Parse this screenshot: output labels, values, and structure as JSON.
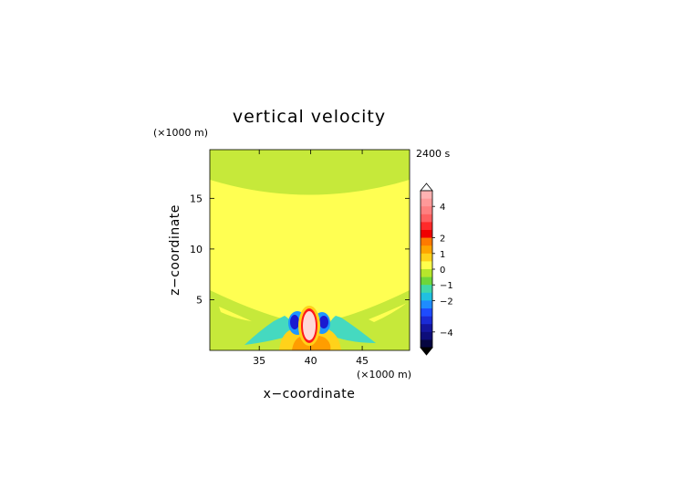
{
  "chart_data": {
    "type": "heatmap",
    "title": "vertical velocity",
    "time_label": "2400 s",
    "xlabel": "x−coordinate",
    "ylabel": "z−coordinate",
    "x_unit": "(×1000 m)",
    "y_unit": "(×1000 m)",
    "xlim": [
      30.2,
      49.6
    ],
    "ylim": [
      0,
      19.8
    ],
    "xticks": [
      35,
      40,
      45
    ],
    "yticks": [
      5,
      10,
      15
    ],
    "colorbar": {
      "ticks": [
        "4",
        "2",
        "1",
        "0",
        "−1",
        "−2",
        "−4"
      ],
      "levels": [
        {
          "color": "#ffb2b2"
        },
        {
          "color": "#ff9999"
        },
        {
          "color": "#ff8080"
        },
        {
          "color": "#ff6060"
        },
        {
          "color": "#ff2a2a"
        },
        {
          "color": "#f00000"
        },
        {
          "color": "#ff7a00"
        },
        {
          "color": "#ffa500"
        },
        {
          "color": "#ffd21a"
        },
        {
          "color": "#ffff4d"
        },
        {
          "color": "#b6e62c"
        },
        {
          "color": "#6ed63a"
        },
        {
          "color": "#40d8a8"
        },
        {
          "color": "#20c0e0"
        },
        {
          "color": "#1e8cff"
        },
        {
          "color": "#1e4cff"
        },
        {
          "color": "#1a2bd6"
        },
        {
          "color": "#14169f"
        },
        {
          "color": "#0d0d7a"
        },
        {
          "color": "#050540"
        }
      ]
    },
    "field_colors": {
      "background": "#c6e93a",
      "zero_band": "#ffff52",
      "weak_up": "#ffd21a",
      "mid_up": "#ff9d00",
      "strong_up": "#ff1a1a",
      "core": "#ffd8d8",
      "weak_down": "#45d9c0",
      "mid_down": "#1e96ff",
      "strong_down": "#1a1ad0"
    }
  }
}
